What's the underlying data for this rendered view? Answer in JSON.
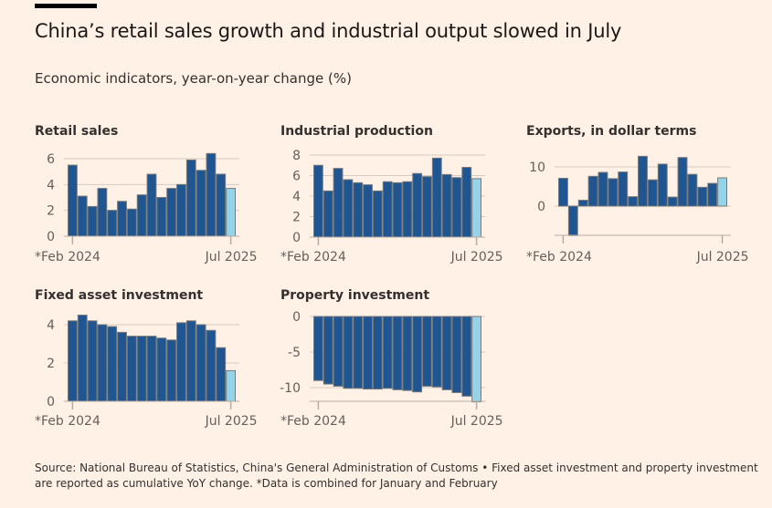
{
  "title": "China’s retail sales growth and industrial output slowed in July",
  "subtitle": "Economic indicators, year-on-year change (%)",
  "source": "Source: National Bureau of Statistics, China's General Administration of Customs • Fixed asset investment and property investment are reported as cumulative YoY change. *Data is combined for January and February",
  "colors": {
    "background": "#fff1e5",
    "bar": "#1f5591",
    "latest_bar": "#96d3e8",
    "bar_outline": "#777",
    "grid": "#d6cbc2"
  },
  "chart_data": [
    {
      "type": "bar",
      "title": "Retail sales",
      "x_start": "*Feb 2024",
      "x_end": "Jul 2025",
      "yticks": [
        "0",
        "2",
        "4",
        "6"
      ],
      "ylim": [
        0,
        6.5
      ],
      "values": [
        5.5,
        3.1,
        2.3,
        3.7,
        2.0,
        2.7,
        2.1,
        3.2,
        4.8,
        3.0,
        3.7,
        4.0,
        5.9,
        5.1,
        6.4,
        4.8,
        3.7
      ]
    },
    {
      "type": "bar",
      "title": "Industrial production",
      "x_start": "*Feb 2024",
      "x_end": "Jul 2025",
      "yticks": [
        "0",
        "2",
        "4",
        "6",
        "8"
      ],
      "ylim": [
        0,
        8
      ],
      "values": [
        7.0,
        4.5,
        6.7,
        5.6,
        5.3,
        5.1,
        4.5,
        5.4,
        5.3,
        5.4,
        6.2,
        5.9,
        7.7,
        6.1,
        5.8,
        6.8,
        5.7
      ]
    },
    {
      "type": "bar",
      "title": "Exports, in dollar terms",
      "x_start": "*Feb 2024",
      "x_end": "Jul 2025",
      "yticks": [
        "0",
        "10"
      ],
      "ylim": [
        -7.5,
        13
      ],
      "values": [
        7.1,
        -7.5,
        1.5,
        7.6,
        8.6,
        7.0,
        8.7,
        2.4,
        12.7,
        6.7,
        10.7,
        2.3,
        12.4,
        8.1,
        4.8,
        5.8,
        7.2
      ]
    },
    {
      "type": "bar",
      "title": "Fixed asset investment",
      "x_start": "*Feb 2024",
      "x_end": "Jul 2025",
      "yticks": [
        "0",
        "2",
        "4"
      ],
      "ylim": [
        0,
        4.5
      ],
      "values": [
        4.2,
        4.5,
        4.2,
        4.0,
        3.9,
        3.6,
        3.4,
        3.4,
        3.4,
        3.3,
        3.2,
        4.1,
        4.2,
        4.0,
        3.7,
        2.8,
        1.6
      ]
    },
    {
      "type": "bar",
      "title": "Property investment",
      "x_start": "*Feb 2024",
      "x_end": "Jul 2025",
      "yticks": [
        "0",
        "-5",
        "-10"
      ],
      "ylim": [
        -12,
        0
      ],
      "values": [
        -9.0,
        -9.5,
        -9.8,
        -10.1,
        -10.1,
        -10.2,
        -10.2,
        -10.1,
        -10.3,
        -10.4,
        -10.6,
        -9.8,
        -9.9,
        -10.3,
        -10.7,
        -11.2,
        -12.0
      ]
    }
  ]
}
